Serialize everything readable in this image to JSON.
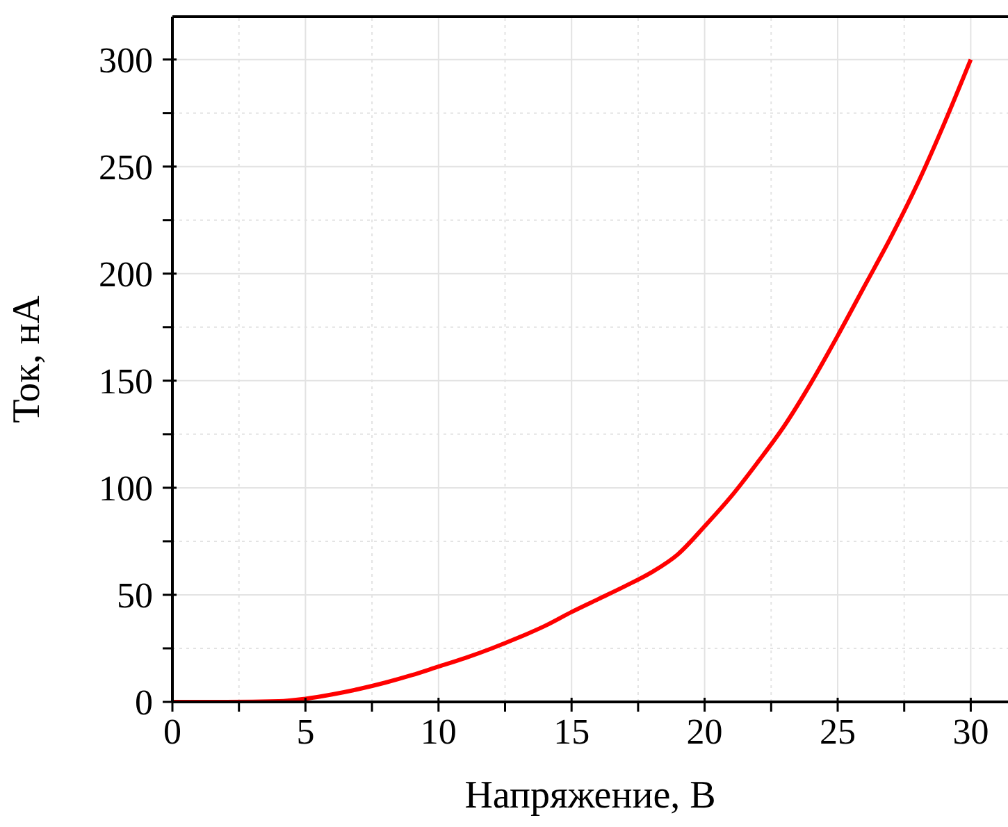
{
  "chart_data": {
    "type": "line",
    "xlabel": "Напряжение, В",
    "ylabel": "Ток, нА",
    "x": [
      0,
      2,
      4,
      5,
      6,
      7,
      8,
      9,
      10,
      11,
      12,
      13,
      14,
      15,
      16,
      17,
      18,
      19,
      20,
      21,
      22,
      23,
      24,
      25,
      26,
      27,
      28,
      29,
      30
    ],
    "series": [
      {
        "color": "#ff0000",
        "values": [
          0,
          0,
          0.3,
          1.5,
          3.5,
          6,
          9,
          12.5,
          16.5,
          20.5,
          25,
          30,
          35.5,
          42,
          48,
          54,
          60.5,
          69,
          82,
          96,
          112,
          129,
          149,
          171,
          194,
          217,
          242,
          270,
          300
        ]
      }
    ],
    "xlim": [
      0,
      31.4
    ],
    "xticks": [
      0,
      {
        "value": 2.5,
        "label": null
      },
      5,
      {
        "value": 7.5,
        "label": null
      },
      10,
      {
        "value": 12.5,
        "label": null
      },
      15,
      {
        "value": 17.5,
        "label": null
      },
      20,
      {
        "value": 22.5,
        "label": null
      },
      25,
      {
        "value": 27.5,
        "label": null
      },
      30
    ],
    "ylim": [
      0,
      320
    ],
    "yticks": [
      0,
      {
        "value": 25,
        "label": null
      },
      50,
      {
        "value": 75,
        "label": null
      },
      100,
      {
        "value": 125,
        "label": null
      },
      150,
      {
        "value": 175,
        "label": null
      },
      200,
      {
        "value": 225,
        "label": null
      },
      250,
      {
        "value": 275,
        "label": null
      },
      300
    ],
    "grid": true,
    "marker": "none",
    "line_style": "solid",
    "legend": false
  }
}
